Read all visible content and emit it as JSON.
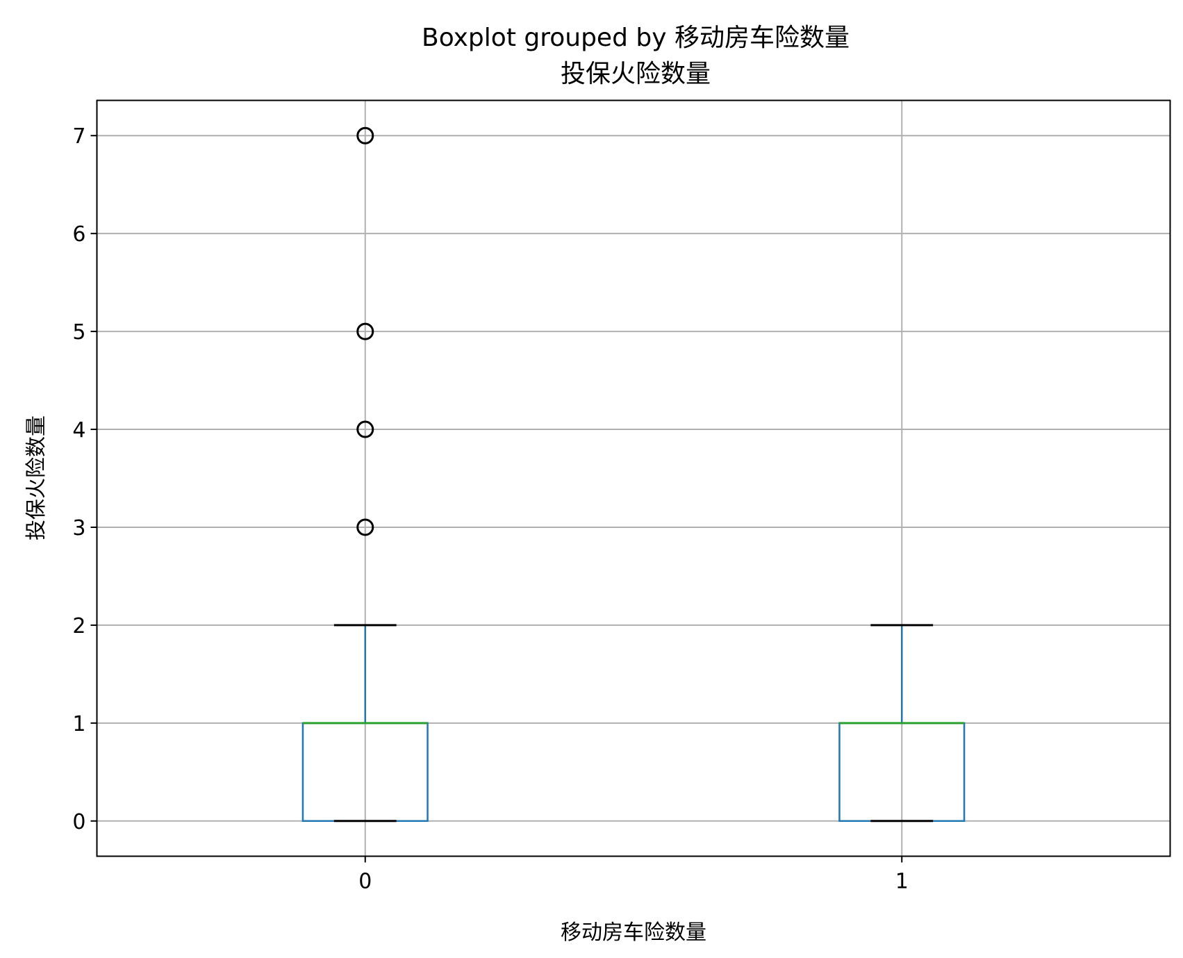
{
  "chart_data": {
    "type": "box",
    "title": "Boxplot grouped by 移动房车险数量",
    "subtitle": "投保火险数量",
    "xlabel": "移动房车险数量",
    "ylabel": "投保火险数量",
    "categories": [
      "0",
      "1"
    ],
    "yticks": [
      0,
      1,
      2,
      3,
      4,
      5,
      6,
      7
    ],
    "ylim": [
      -0.36,
      7.36
    ],
    "grid": true,
    "boxes": [
      {
        "category": "0",
        "whisker_low": 0,
        "q1": 0,
        "median": 1,
        "q3": 1,
        "whisker_high": 2,
        "fliers": [
          3,
          4,
          5,
          7
        ]
      },
      {
        "category": "1",
        "whisker_low": 0,
        "q1": 0,
        "median": 1,
        "q3": 1,
        "whisker_high": 2,
        "fliers": []
      }
    ],
    "colors": {
      "box": "#1f77b4",
      "median": "#2ca02c",
      "caps": "#000000",
      "fliers": "#000000",
      "grid": "#b0b0b0"
    }
  }
}
